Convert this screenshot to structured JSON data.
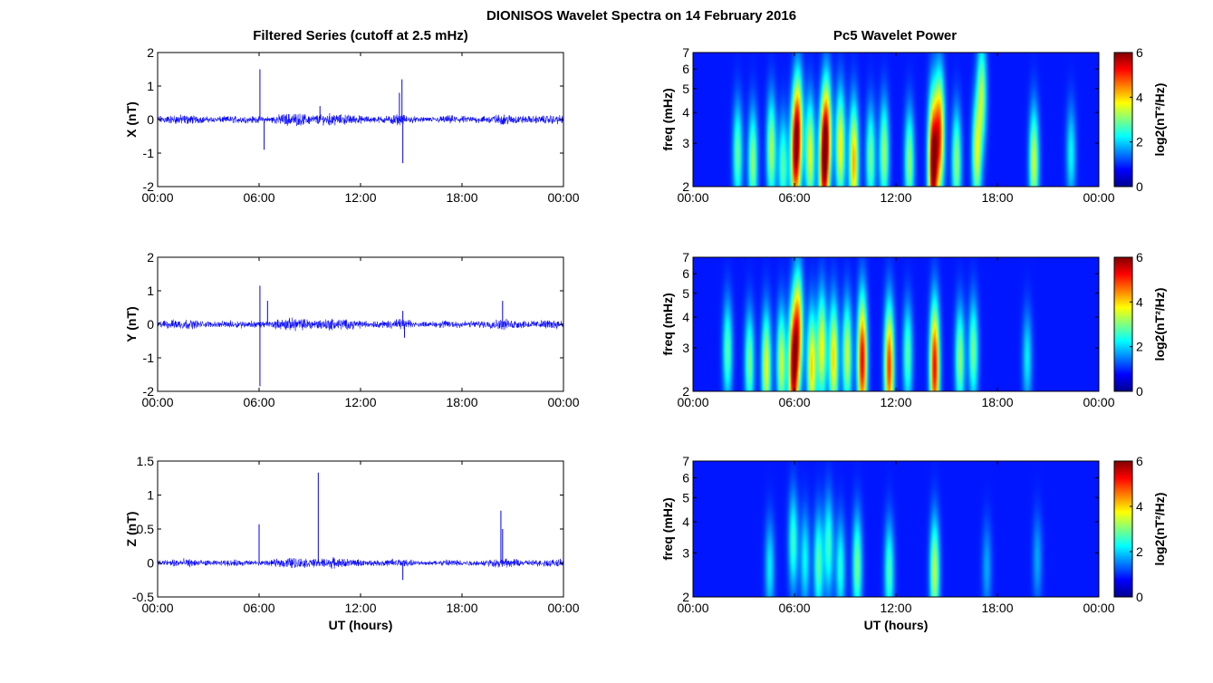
{
  "figure_title": "DIONISOS Wavelet Spectra on 14 February 2016",
  "left_column_title": "Filtered Series (cutoff at 2.5 mHz)",
  "right_column_title": "Pc5 Wavelet Power",
  "colors": {
    "trace": "#0000ff",
    "background": "#ffffff",
    "axis": "#000000"
  },
  "chart_data": [
    {
      "type": "line",
      "id": "x-series",
      "ylabel": "X (nT)",
      "xlabel": "",
      "ylim": [
        -2,
        2
      ],
      "yticks": [
        "2",
        "1",
        "0",
        "-1",
        "-2"
      ],
      "xticks": [
        "00:00",
        "06:00",
        "12:00",
        "18:00",
        "00:00"
      ],
      "x_unit": "hours UT",
      "noise_amplitude_nT": 0.12,
      "series": [
        {
          "color": "#0000ff",
          "spikes": [
            {
              "t": 6.05,
              "v": 1.5
            },
            {
              "t": 6.3,
              "v": -0.9
            },
            {
              "t": 14.45,
              "v": 1.2
            },
            {
              "t": 14.5,
              "v": -1.3
            },
            {
              "t": 14.3,
              "v": 0.8
            },
            {
              "t": 9.6,
              "v": 0.4
            }
          ]
        }
      ]
    },
    {
      "type": "line",
      "id": "y-series",
      "ylabel": "Y (nT)",
      "xlabel": "",
      "ylim": [
        -2,
        2
      ],
      "yticks": [
        "2",
        "1",
        "0",
        "-1",
        "-2"
      ],
      "xticks": [
        "00:00",
        "06:00",
        "12:00",
        "18:00",
        "00:00"
      ],
      "x_unit": "hours UT",
      "noise_amplitude_nT": 0.12,
      "series": [
        {
          "color": "#0000ff",
          "spikes": [
            {
              "t": 6.05,
              "v": 1.15
            },
            {
              "t": 6.05,
              "v": -1.85
            },
            {
              "t": 6.5,
              "v": 0.7
            },
            {
              "t": 20.4,
              "v": 0.7
            },
            {
              "t": 14.5,
              "v": 0.4
            },
            {
              "t": 14.6,
              "v": -0.4
            }
          ]
        }
      ]
    },
    {
      "type": "line",
      "id": "z-series",
      "ylabel": "Z (nT)",
      "xlabel": "UT (hours)",
      "ylim": [
        -0.5,
        1.5
      ],
      "yticks": [
        "1.5",
        "1",
        "0.5",
        "0",
        "-0.5"
      ],
      "xticks": [
        "00:00",
        "06:00",
        "12:00",
        "18:00",
        "00:00"
      ],
      "x_unit": "hours UT",
      "noise_amplitude_nT": 0.05,
      "series": [
        {
          "color": "#0000ff",
          "spikes": [
            {
              "t": 6.0,
              "v": 0.57
            },
            {
              "t": 9.5,
              "v": 1.33
            },
            {
              "t": 20.3,
              "v": 0.77
            },
            {
              "t": 20.4,
              "v": 0.5
            },
            {
              "t": 14.5,
              "v": -0.25
            }
          ]
        }
      ]
    },
    {
      "type": "heatmap",
      "id": "x-wavelet",
      "ylabel": "freq (mHz)",
      "xlabel": "",
      "yticks": [
        "7",
        "6",
        "5",
        "4",
        "3",
        "2"
      ],
      "ylim_mHz": [
        2,
        7
      ],
      "xticks": [
        "00:00",
        "06:00",
        "12:00",
        "18:00",
        "00:00"
      ],
      "colorbar_label": "log2(nT²/Hz)",
      "colorbar_ticks": [
        "6",
        "4",
        "2",
        "0"
      ],
      "clim": [
        0,
        6
      ],
      "blobs": [
        {
          "t": 2.6,
          "f": 2.7,
          "p": 2.3
        },
        {
          "t": 3.5,
          "f": 2.5,
          "p": 2.6
        },
        {
          "t": 4.6,
          "f": 2.8,
          "p": 2.8
        },
        {
          "t": 5.3,
          "f": 2.4,
          "p": 2.2
        },
        {
          "t": 6.0,
          "f": 2.6,
          "p": 4.2
        },
        {
          "t": 6.2,
          "f": 3.5,
          "p": 3.6
        },
        {
          "t": 6.9,
          "f": 2.7,
          "p": 3.2
        },
        {
          "t": 7.7,
          "f": 2.4,
          "p": 4.6
        },
        {
          "t": 7.9,
          "f": 3.3,
          "p": 3.8
        },
        {
          "t": 8.7,
          "f": 2.9,
          "p": 3.4
        },
        {
          "t": 9.5,
          "f": 2.5,
          "p": 3.9
        },
        {
          "t": 10.5,
          "f": 2.6,
          "p": 2.4
        },
        {
          "t": 11.3,
          "f": 2.7,
          "p": 2.7
        },
        {
          "t": 12.8,
          "f": 2.5,
          "p": 2.6
        },
        {
          "t": 14.2,
          "f": 2.45,
          "p": 6.0
        },
        {
          "t": 14.6,
          "f": 3.3,
          "p": 4.3
        },
        {
          "t": 15.6,
          "f": 2.5,
          "p": 2.6
        },
        {
          "t": 16.8,
          "f": 2.7,
          "p": 3.0
        },
        {
          "t": 17.1,
          "f": 4.8,
          "p": 2.6
        },
        {
          "t": 20.2,
          "f": 2.5,
          "p": 3.0
        },
        {
          "t": 22.4,
          "f": 2.7,
          "p": 1.6
        }
      ]
    },
    {
      "type": "heatmap",
      "id": "y-wavelet",
      "ylabel": "freq (mHz)",
      "xlabel": "",
      "yticks": [
        "7",
        "6",
        "5",
        "4",
        "3",
        "2"
      ],
      "ylim_mHz": [
        2,
        7
      ],
      "xticks": [
        "00:00",
        "06:00",
        "12:00",
        "18:00",
        "00:00"
      ],
      "colorbar_label": "log2(nT²/Hz)",
      "colorbar_ticks": [
        "6",
        "4",
        "2",
        "0"
      ],
      "clim": [
        0,
        6
      ],
      "blobs": [
        {
          "t": 2.0,
          "f": 2.9,
          "p": 2.2
        },
        {
          "t": 3.3,
          "f": 2.6,
          "p": 2.4
        },
        {
          "t": 4.3,
          "f": 2.5,
          "p": 3.2
        },
        {
          "t": 5.2,
          "f": 2.6,
          "p": 3.0
        },
        {
          "t": 5.9,
          "f": 2.4,
          "p": 5.3
        },
        {
          "t": 6.2,
          "f": 3.6,
          "p": 3.9
        },
        {
          "t": 7.0,
          "f": 2.5,
          "p": 3.6
        },
        {
          "t": 7.6,
          "f": 3.0,
          "p": 3.3
        },
        {
          "t": 8.3,
          "f": 2.7,
          "p": 3.6
        },
        {
          "t": 9.1,
          "f": 2.8,
          "p": 3.0
        },
        {
          "t": 10.0,
          "f": 2.65,
          "p": 5.2
        },
        {
          "t": 11.6,
          "f": 2.5,
          "p": 4.7
        },
        {
          "t": 12.7,
          "f": 2.8,
          "p": 2.2
        },
        {
          "t": 14.3,
          "f": 2.5,
          "p": 5.1
        },
        {
          "t": 15.8,
          "f": 2.7,
          "p": 2.6
        },
        {
          "t": 16.6,
          "f": 2.9,
          "p": 2.4
        },
        {
          "t": 19.8,
          "f": 2.7,
          "p": 1.5
        }
      ]
    },
    {
      "type": "heatmap",
      "id": "z-wavelet",
      "ylabel": "freq (mHz)",
      "xlabel": "UT (hours)",
      "yticks": [
        "7",
        "6",
        "5",
        "4",
        "3",
        "2"
      ],
      "ylim_mHz": [
        2,
        7
      ],
      "xticks": [
        "00:00",
        "06:00",
        "12:00",
        "18:00",
        "00:00"
      ],
      "colorbar_label": "log2(nT²/Hz)",
      "colorbar_ticks": [
        "6",
        "4",
        "2",
        "0"
      ],
      "clim": [
        0,
        6
      ],
      "blobs": [
        {
          "t": 4.5,
          "f": 2.6,
          "p": 1.5
        },
        {
          "t": 5.9,
          "f": 3.3,
          "p": 2.0
        },
        {
          "t": 6.6,
          "f": 2.8,
          "p": 1.6
        },
        {
          "t": 7.4,
          "f": 2.7,
          "p": 2.2
        },
        {
          "t": 8.0,
          "f": 3.2,
          "p": 2.0
        },
        {
          "t": 8.7,
          "f": 2.6,
          "p": 1.8
        },
        {
          "t": 9.7,
          "f": 2.65,
          "p": 2.4
        },
        {
          "t": 11.6,
          "f": 2.5,
          "p": 2.1
        },
        {
          "t": 14.3,
          "f": 2.5,
          "p": 2.9
        },
        {
          "t": 17.4,
          "f": 2.6,
          "p": 1.0
        },
        {
          "t": 20.4,
          "f": 2.8,
          "p": 1.0
        }
      ]
    }
  ]
}
